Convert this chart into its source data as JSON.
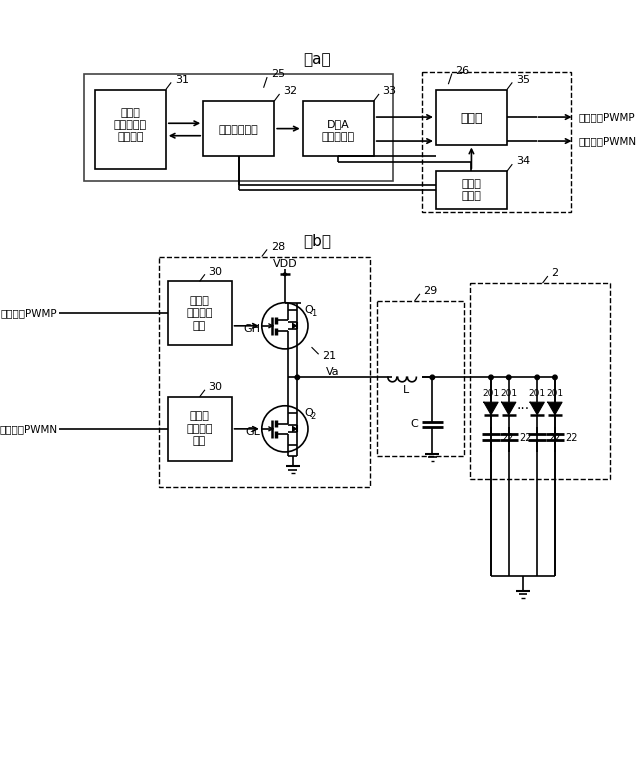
{
  "title_a": "（a）",
  "title_b": "（b）",
  "label_25": "25",
  "label_26": "26",
  "label_31": "31",
  "label_32": "32",
  "label_33": "33",
  "label_34": "34",
  "label_35": "35",
  "label_28": "28",
  "label_29": "29",
  "label_2": "2",
  "label_30a": "30",
  "label_30b": "30",
  "label_21": "21",
  "label_Q1": "Q",
  "label_Q2": "Q",
  "label_VDD": "VDD",
  "label_Va": "Va",
  "label_L": "L",
  "label_C": "C",
  "label_GH": "GH",
  "label_GL": "GL",
  "label_201": "201",
  "label_22": "22",
  "box_memory_1": "メモリ",
  "box_memory_2": "（駅動波形",
  "box_memory_3": "データ）",
  "box_controller": "コントローラ",
  "box_dac_1": "D／A",
  "box_dac_2": "コンバータ",
  "box_comparator": "比較器",
  "box_triangle_1": "三角波",
  "box_triangle_2": "発振器",
  "box_gate_drive_1": "ゲート",
  "box_gate_drive_2": "ドライブ",
  "box_gate_drive_3": "回路",
  "sig_pwmp": "変調信号PWMP",
  "sig_pwmn": "変調信号PWMN"
}
